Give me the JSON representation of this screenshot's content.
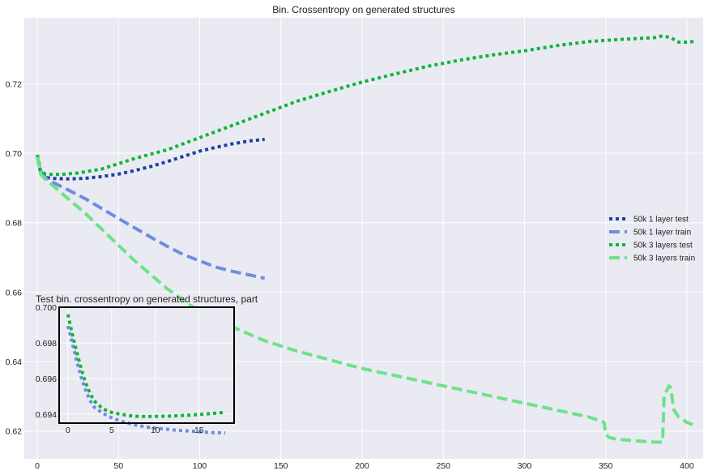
{
  "chart_data": [
    {
      "type": "line",
      "title": "Bin. Crossentropy on generated structures",
      "xlabel": "",
      "ylabel": "",
      "xlim": [
        -8,
        410
      ],
      "ylim": [
        0.612,
        0.739
      ],
      "xticks": [
        0,
        50,
        100,
        150,
        200,
        250,
        300,
        350,
        400
      ],
      "yticks": [
        0.62,
        0.64,
        0.66,
        0.68,
        0.7,
        0.72
      ],
      "grid": true,
      "legend_position": "right",
      "series": [
        {
          "name": "50k 1 layer test",
          "color": "#1f3fa6",
          "style": "dotted",
          "x": [
            0,
            2,
            5,
            8,
            12,
            20,
            30,
            40,
            50,
            60,
            70,
            80,
            90,
            100,
            110,
            120,
            130,
            140
          ],
          "y": [
            0.6995,
            0.6945,
            0.6931,
            0.6928,
            0.6927,
            0.6926,
            0.6928,
            0.6933,
            0.694,
            0.695,
            0.6962,
            0.6976,
            0.6991,
            0.7006,
            0.7017,
            0.7027,
            0.7035,
            0.704
          ]
        },
        {
          "name": "50k 1 layer train",
          "color": "#6f8ce0",
          "style": "dashed",
          "x": [
            0,
            2,
            5,
            10,
            20,
            30,
            40,
            50,
            60,
            70,
            80,
            90,
            100,
            110,
            120,
            130,
            140
          ],
          "y": [
            0.699,
            0.695,
            0.693,
            0.6915,
            0.6892,
            0.6868,
            0.684,
            0.6812,
            0.6785,
            0.6758,
            0.6732,
            0.6708,
            0.669,
            0.6672,
            0.666,
            0.665,
            0.664
          ]
        },
        {
          "name": "50k 3 layers test",
          "color": "#0cb63a",
          "style": "dotted",
          "x": [
            0,
            2,
            5,
            8,
            15,
            25,
            40,
            60,
            80,
            100,
            120,
            140,
            160,
            180,
            200,
            220,
            240,
            260,
            280,
            300,
            320,
            340,
            360,
            380,
            385,
            390,
            395,
            400,
            405
          ],
          "y": [
            0.6995,
            0.695,
            0.694,
            0.6939,
            0.6939,
            0.6943,
            0.6955,
            0.6985,
            0.701,
            0.7045,
            0.708,
            0.7115,
            0.715,
            0.7178,
            0.7205,
            0.7228,
            0.725,
            0.7268,
            0.7283,
            0.7295,
            0.731,
            0.7322,
            0.7328,
            0.7333,
            0.7338,
            0.7333,
            0.732,
            0.732,
            0.7322
          ]
        },
        {
          "name": "50k 3 layers train",
          "color": "#6ee28a",
          "style": "dashed",
          "x": [
            0,
            2,
            5,
            10,
            20,
            30,
            40,
            50,
            60,
            70,
            80,
            90,
            100,
            110,
            120,
            130,
            140,
            160,
            180,
            200,
            220,
            240,
            260,
            280,
            300,
            320,
            340,
            349,
            350,
            352,
            355,
            360,
            370,
            380,
            385,
            386,
            388,
            389,
            390,
            392,
            395,
            400,
            405
          ],
          "y": [
            0.699,
            0.694,
            0.6925,
            0.6905,
            0.6865,
            0.6825,
            0.678,
            0.6735,
            0.669,
            0.665,
            0.661,
            0.6575,
            0.6545,
            0.652,
            0.65,
            0.648,
            0.646,
            0.643,
            0.6405,
            0.638,
            0.636,
            0.634,
            0.632,
            0.63,
            0.628,
            0.626,
            0.624,
            0.6225,
            0.619,
            0.6182,
            0.6178,
            0.6175,
            0.6171,
            0.6168,
            0.6168,
            0.6305,
            0.632,
            0.633,
            0.6325,
            0.626,
            0.624,
            0.6225,
            0.6215
          ]
        }
      ]
    },
    {
      "type": "line",
      "title": "Test bin. crossentropy on generated structures, part",
      "xlim": [
        -1,
        19
      ],
      "ylim": [
        0.6935,
        0.7
      ],
      "xticks": [
        0,
        5,
        10,
        15
      ],
      "yticks": [
        0.694,
        0.696,
        0.698,
        0.7
      ],
      "grid": true,
      "series": [
        {
          "name": "50k 1 layer test",
          "color": "#6f8ce0",
          "style": "dotted",
          "x": [
            0,
            0.5,
            1,
            1.5,
            2,
            2.5,
            3,
            4,
            5,
            6,
            7,
            8,
            9,
            10,
            12,
            14,
            16,
            18
          ],
          "y": [
            0.69895,
            0.698,
            0.697,
            0.6961,
            0.6954,
            0.6948,
            0.6944,
            0.69405,
            0.6938,
            0.69362,
            0.69348,
            0.69337,
            0.69328,
            0.69322,
            0.69312,
            0.69305,
            0.69298,
            0.69295
          ]
        },
        {
          "name": "50k 3 layers test",
          "color": "#0cb63a",
          "style": "dotted",
          "x": [
            0,
            0.5,
            1,
            1.5,
            2,
            2.5,
            3,
            4,
            5,
            6,
            7,
            8,
            9,
            10,
            12,
            14,
            16,
            18
          ],
          "y": [
            0.6996,
            0.6985,
            0.6975,
            0.6966,
            0.6958,
            0.6952,
            0.69475,
            0.6943,
            0.6941,
            0.694,
            0.69392,
            0.69388,
            0.69387,
            0.69388,
            0.6939,
            0.69395,
            0.69402,
            0.6941
          ]
        }
      ]
    }
  ]
}
